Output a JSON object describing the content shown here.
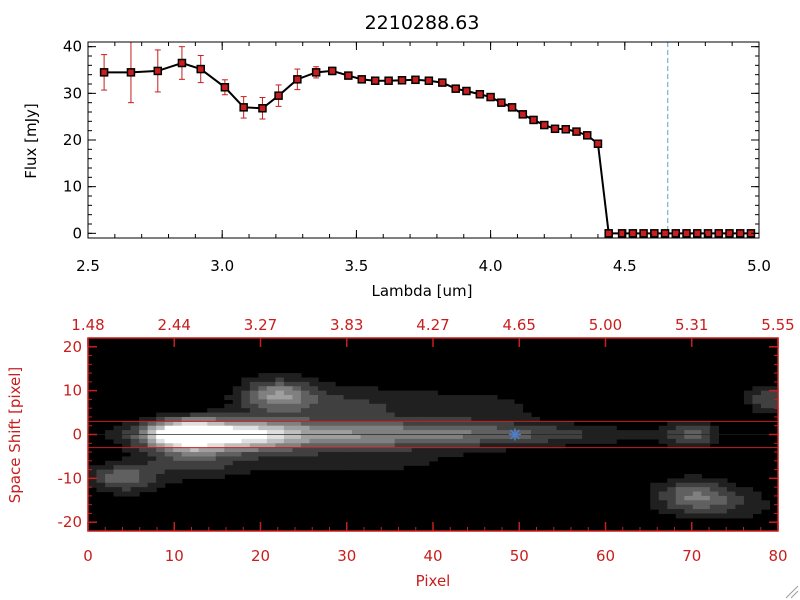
{
  "chart_data": [
    {
      "type": "line",
      "title": "2210288.63",
      "xlabel": "Lambda [um]",
      "ylabel": "Flux [mJy]",
      "xlim": [
        2.5,
        5.0
      ],
      "ylim": [
        -1,
        41
      ],
      "x_ticks": [
        "2.5",
        "3.0",
        "3.5",
        "4.0",
        "4.5",
        "5.0"
      ],
      "y_ticks": [
        "0",
        "10",
        "20",
        "30",
        "40"
      ],
      "reference_line": {
        "x": 4.66,
        "style": "dashed",
        "color": "#5aa0c8"
      },
      "zero_line_color": "#c81e1e",
      "line_color": "#000000",
      "marker_color": "#c81e1e",
      "series": [
        {
          "x": [
            2.56,
            2.66,
            2.76,
            2.85,
            2.92,
            3.01,
            3.08,
            3.15,
            3.21,
            3.28,
            3.35,
            3.41,
            3.47,
            3.52,
            3.57,
            3.62,
            3.67,
            3.72,
            3.77,
            3.82,
            3.87,
            3.91,
            3.96,
            4.0,
            4.04,
            4.08,
            4.12,
            4.16,
            4.2,
            4.24,
            4.28,
            4.32,
            4.36,
            4.4,
            4.44,
            4.49,
            4.53,
            4.57,
            4.61,
            4.65,
            4.69,
            4.73,
            4.77,
            4.81,
            4.85,
            4.89,
            4.93,
            4.97
          ],
          "y": [
            34.5,
            34.5,
            34.8,
            36.5,
            35.2,
            31.3,
            27.0,
            26.8,
            29.5,
            33.0,
            34.5,
            34.8,
            33.8,
            33.0,
            32.7,
            32.7,
            32.8,
            32.9,
            32.7,
            32.3,
            31.0,
            30.5,
            29.8,
            29.2,
            28.0,
            27.0,
            25.5,
            24.3,
            23.2,
            22.4,
            22.3,
            21.8,
            21.0,
            19.2,
            0,
            0,
            0,
            0,
            0,
            0,
            0,
            0,
            0,
            0,
            0,
            0,
            0,
            0
          ],
          "yerr": [
            3.8,
            6.5,
            4.5,
            3.5,
            2.9,
            1.6,
            2.3,
            2.3,
            2.3,
            2.2,
            1.2,
            0.8,
            0.6,
            0.5,
            0.5,
            0.4,
            0.4,
            0.4,
            0.4,
            0.4,
            0.4,
            0.4,
            0.4,
            0.4,
            0.4,
            0.4,
            0.4,
            0.4,
            0.4,
            0.4,
            0.4,
            0.4,
            0.4,
            0.4,
            0,
            0,
            0,
            0,
            0,
            0,
            0,
            0,
            0,
            0,
            0,
            0,
            0,
            0
          ]
        }
      ]
    },
    {
      "type": "heatmap",
      "xlabel": "Pixel",
      "ylabel": "Space Shift [pixel]",
      "xlim": [
        0,
        80
      ],
      "ylim": [
        -22,
        22
      ],
      "x_ticks": [
        "0",
        "10",
        "20",
        "30",
        "40",
        "50",
        "60",
        "70",
        "80"
      ],
      "y_ticks": [
        "-20",
        "-10",
        "0",
        "10",
        "20"
      ],
      "top_axis_ticks": [
        "1.48",
        "2.44",
        "3.27",
        "3.83",
        "4.27",
        "4.65",
        "5.00",
        "5.31",
        "5.55"
      ],
      "axis_color": "#c81e1e",
      "aperture_lines_y": [
        3,
        -3
      ],
      "marker": {
        "x": 49.5,
        "y": 0,
        "shape": "star",
        "color": "#4a7fd0"
      },
      "blobs": [
        {
          "x": 11,
          "y": 0,
          "sx": 3.0,
          "sy": 2.2,
          "amp": 1.0
        },
        {
          "x": 17,
          "y": 0,
          "sx": 5.0,
          "sy": 2.6,
          "amp": 0.6
        },
        {
          "x": 24,
          "y": 0,
          "sx": 12.0,
          "sy": 2.4,
          "amp": 0.5
        },
        {
          "x": 42,
          "y": 0,
          "sx": 10.0,
          "sy": 2.0,
          "amp": 0.3
        },
        {
          "x": 56,
          "y": 0,
          "sx": 8.0,
          "sy": 1.6,
          "amp": 0.16
        },
        {
          "x": 22,
          "y": 9,
          "sx": 3.0,
          "sy": 2.5,
          "amp": 0.55
        },
        {
          "x": 30,
          "y": 7,
          "sx": 7.0,
          "sy": 3.0,
          "amp": 0.25
        },
        {
          "x": 45,
          "y": 6,
          "sx": 6.0,
          "sy": 3.0,
          "amp": 0.18
        },
        {
          "x": 20,
          "y": 18,
          "sx": 10.0,
          "sy": 3.0,
          "amp": 0.12
        },
        {
          "x": 4,
          "y": -10,
          "sx": 2.8,
          "sy": 2.3,
          "amp": 0.45
        },
        {
          "x": 12,
          "y": -6,
          "sx": 4.0,
          "sy": 3.0,
          "amp": 0.28
        },
        {
          "x": 30,
          "y": -6,
          "sx": 12.0,
          "sy": 3.0,
          "amp": 0.16
        },
        {
          "x": 70,
          "y": 0,
          "sx": 2.2,
          "sy": 2.0,
          "amp": 0.4
        },
        {
          "x": 70,
          "y": -14,
          "sx": 3.2,
          "sy": 2.8,
          "amp": 0.45
        },
        {
          "x": 79,
          "y": 8,
          "sx": 1.8,
          "sy": 2.2,
          "amp": 0.35
        },
        {
          "x": 75,
          "y": -16,
          "sx": 4.0,
          "sy": 3.0,
          "amp": 0.18
        },
        {
          "x": 66,
          "y": 12,
          "sx": 6.0,
          "sy": 4.0,
          "amp": 0.1
        }
      ]
    }
  ]
}
